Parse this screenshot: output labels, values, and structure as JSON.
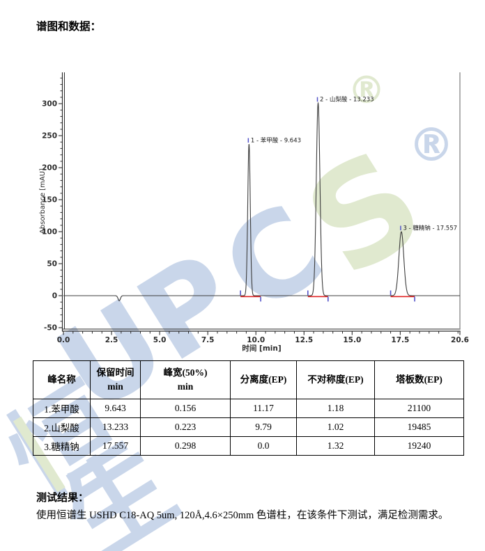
{
  "page": {
    "title": "谱图和数据：",
    "results_heading": "测试结果：",
    "results_body": "使用恒谱生 USHD C18-AQ 5um, 120Å,4.6×250mm 色谱柱，在该条件下测试，满足检测需求。"
  },
  "chart_data": {
    "type": "line",
    "title": "",
    "xlabel": "时间 [min]",
    "ylabel": "Absorbance [mAU]",
    "xlim": [
      0.0,
      20.6
    ],
    "ylim": [
      -54,
      348
    ],
    "x_ticks": [
      {
        "v": 0.0,
        "label": "0.0"
      },
      {
        "v": 2.5,
        "label": "2.5"
      },
      {
        "v": 5.0,
        "label": "5.0"
      },
      {
        "v": 7.5,
        "label": "7.5"
      },
      {
        "v": 10.0,
        "label": "10.0"
      },
      {
        "v": 12.5,
        "label": "12.5"
      },
      {
        "v": 15.0,
        "label": "15.0"
      },
      {
        "v": 17.5,
        "label": "17.5"
      },
      {
        "v": 20.6,
        "label": "20.6"
      }
    ],
    "y_ticks": [
      {
        "v": -50,
        "label": "-50"
      },
      {
        "v": 0,
        "label": "0"
      },
      {
        "v": 50,
        "label": "50"
      },
      {
        "v": 100,
        "label": "100"
      },
      {
        "v": 150,
        "label": "150"
      },
      {
        "v": 200,
        "label": "200"
      },
      {
        "v": 250,
        "label": "250"
      },
      {
        "v": 300,
        "label": "300"
      }
    ],
    "baseline_mau": 0,
    "peaks": [
      {
        "index": 1,
        "name": "苯甲酸",
        "retention_min": 9.643,
        "height_mau": 237,
        "fwhm_min": 0.156,
        "label": "1 - 苯甲酸 - 9.643",
        "integration_window": [
          9.2,
          10.25
        ]
      },
      {
        "index": 2,
        "name": "山梨酸",
        "retention_min": 13.233,
        "height_mau": 301,
        "fwhm_min": 0.223,
        "label": "2 - 山梨酸 - 13.233",
        "integration_window": [
          12.7,
          13.75
        ]
      },
      {
        "index": 3,
        "name": "糖精钠",
        "retention_min": 17.557,
        "height_mau": 100,
        "fwhm_min": 0.298,
        "label": "3 - 糖精钠 - 17.557",
        "integration_window": [
          17.0,
          18.25
        ]
      }
    ],
    "negative_dip": {
      "x_min": 2.9,
      "depth_mau": -8
    },
    "legend": null,
    "grid": false,
    "colors": {
      "trace": "#3c3c3c",
      "axis": "#2b2b2b",
      "plot_border": "#8f8f8f",
      "integration_baseline": "#e02525",
      "peak_marker": "#5252c8"
    }
  },
  "table": {
    "headers": [
      {
        "line1": "峰名称",
        "line2": ""
      },
      {
        "line1": "保留时间",
        "line2": "min"
      },
      {
        "line1": "峰宽(50%)",
        "line2": "min"
      },
      {
        "line1": "分离度(EP)",
        "line2": ""
      },
      {
        "line1": "不对称度(EP)",
        "line2": ""
      },
      {
        "line1": "塔板数(EP)",
        "line2": ""
      }
    ],
    "rows": [
      [
        "1.苯甲酸",
        "9.643",
        "0.156",
        "11.17",
        "1.18",
        "21100"
      ],
      [
        "2.山梨酸",
        "13.233",
        "0.223",
        "9.79",
        "1.02",
        "19485"
      ],
      [
        "3.糖精钠",
        "17.557",
        "0.298",
        "0.0",
        "1.32",
        "19240"
      ]
    ]
  },
  "watermark": {
    "glyphs": [
      {
        "char": "U"
      },
      {
        "char": "P"
      },
      {
        "char": "C"
      },
      {
        "char": "S"
      },
      {
        "char": "®"
      },
      {
        "char": "®"
      },
      {
        "char": "恒"
      },
      {
        "char": "生"
      },
      {
        "char": "|"
      }
    ]
  }
}
